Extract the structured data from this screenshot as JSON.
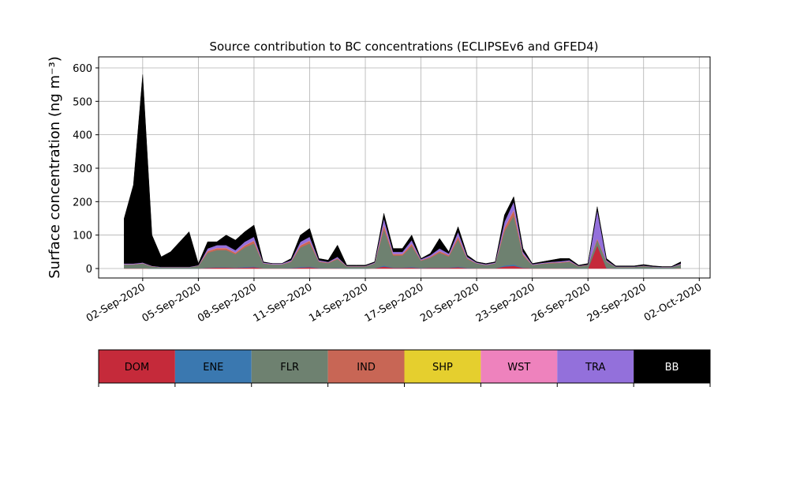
{
  "chart_data": {
    "type": "stacked_area",
    "title": "Source contribution to BC concentrations (ECLIPSEv6 and GFED4)",
    "y_label": "Surface concentration (ng m⁻³)",
    "x": [
      "2020-09-01T00:00",
      "2020-09-01T12:00",
      "2020-09-02T00:00",
      "2020-09-02T12:00",
      "2020-09-03T00:00",
      "2020-09-03T12:00",
      "2020-09-04T00:00",
      "2020-09-04T12:00",
      "2020-09-05T00:00",
      "2020-09-05T12:00",
      "2020-09-06T00:00",
      "2020-09-06T12:00",
      "2020-09-07T00:00",
      "2020-09-07T12:00",
      "2020-09-08T00:00",
      "2020-09-08T12:00",
      "2020-09-09T00:00",
      "2020-09-09T12:00",
      "2020-09-10T00:00",
      "2020-09-10T12:00",
      "2020-09-11T00:00",
      "2020-09-11T12:00",
      "2020-09-12T00:00",
      "2020-09-12T12:00",
      "2020-09-13T00:00",
      "2020-09-13T12:00",
      "2020-09-14T00:00",
      "2020-09-14T12:00",
      "2020-09-15T00:00",
      "2020-09-15T12:00",
      "2020-09-16T00:00",
      "2020-09-16T12:00",
      "2020-09-17T00:00",
      "2020-09-17T12:00",
      "2020-09-18T00:00",
      "2020-09-18T12:00",
      "2020-09-19T00:00",
      "2020-09-19T12:00",
      "2020-09-20T00:00",
      "2020-09-20T12:00",
      "2020-09-21T00:00",
      "2020-09-21T12:00",
      "2020-09-22T00:00",
      "2020-09-22T12:00",
      "2020-09-23T00:00",
      "2020-09-23T12:00",
      "2020-09-24T00:00",
      "2020-09-24T12:00",
      "2020-09-25T00:00",
      "2020-09-25T12:00",
      "2020-09-26T00:00",
      "2020-09-26T12:00",
      "2020-09-27T00:00",
      "2020-09-27T12:00",
      "2020-09-28T00:00",
      "2020-09-28T12:00",
      "2020-09-29T00:00",
      "2020-09-29T12:00",
      "2020-09-30T00:00",
      "2020-09-30T12:00",
      "2020-10-01T00:00"
    ],
    "series": [
      {
        "name": "DOM",
        "color": "#c52a3a",
        "values": [
          1,
          1,
          1,
          0,
          0,
          0,
          0,
          0,
          0,
          2,
          3,
          3,
          2,
          3,
          4,
          1,
          1,
          1,
          1,
          3,
          4,
          1,
          1,
          1,
          0,
          0,
          0,
          1,
          6,
          2,
          2,
          3,
          1,
          2,
          2,
          2,
          4,
          1,
          1,
          1,
          1,
          6,
          8,
          2,
          1,
          1,
          1,
          1,
          1,
          0,
          0,
          70,
          1,
          0,
          0,
          0,
          0,
          0,
          0,
          0,
          1
        ]
      },
      {
        "name": "ENE",
        "color": "#3a78b0",
        "values": [
          0,
          0,
          0,
          0,
          0,
          0,
          0,
          0,
          0,
          1,
          1,
          1,
          1,
          2,
          2,
          0,
          0,
          0,
          1,
          2,
          2,
          1,
          0,
          1,
          0,
          0,
          0,
          0,
          3,
          1,
          1,
          2,
          1,
          1,
          1,
          1,
          2,
          1,
          0,
          0,
          0,
          3,
          4,
          1,
          0,
          0,
          0,
          0,
          1,
          0,
          0,
          0,
          1,
          0,
          0,
          0,
          0,
          0,
          0,
          0,
          0
        ]
      },
      {
        "name": "FLR",
        "color": "#6e8170",
        "values": [
          11,
          11,
          14,
          6,
          4,
          4,
          4,
          4,
          8,
          44,
          51,
          51,
          40,
          58,
          69,
          14,
          11,
          11,
          18,
          58,
          69,
          18,
          15,
          26,
          6,
          6,
          6,
          14,
          109,
          36,
          36,
          62,
          21,
          29,
          44,
          33,
          81,
          26,
          14,
          9,
          14,
          102,
          146,
          36,
          9,
          13,
          15,
          16,
          18,
          6,
          10,
          15,
          18,
          5,
          5,
          5,
          7,
          5,
          4,
          4,
          11
        ]
      },
      {
        "name": "IND",
        "color": "#c86655",
        "values": [
          1,
          1,
          1,
          1,
          0,
          0,
          0,
          0,
          1,
          5,
          6,
          6,
          4,
          6,
          8,
          1,
          1,
          1,
          2,
          6,
          8,
          2,
          2,
          3,
          1,
          1,
          1,
          1,
          12,
          4,
          4,
          7,
          2,
          3,
          5,
          4,
          9,
          3,
          1,
          1,
          1,
          11,
          16,
          4,
          1,
          1,
          2,
          2,
          2,
          1,
          1,
          5,
          2,
          0,
          0,
          0,
          1,
          0,
          0,
          0,
          1
        ]
      },
      {
        "name": "SHP",
        "color": "#e5cf2e",
        "values": [
          0,
          0,
          0,
          0,
          0,
          0,
          0,
          0,
          0,
          0,
          0,
          0,
          0,
          0,
          0,
          0,
          0,
          0,
          0,
          0,
          0,
          0,
          0,
          0,
          0,
          0,
          0,
          0,
          0,
          0,
          0,
          0,
          0,
          0,
          0,
          0,
          0,
          0,
          0,
          0,
          0,
          0,
          0,
          0,
          0,
          0,
          0,
          0,
          0,
          0,
          0,
          0,
          0,
          0,
          0,
          0,
          0,
          0,
          0,
          0,
          0
        ]
      },
      {
        "name": "WST",
        "color": "#ee82bd",
        "values": [
          0,
          0,
          0,
          0,
          0,
          0,
          0,
          0,
          0,
          1,
          1,
          1,
          1,
          1,
          1,
          0,
          0,
          0,
          0,
          1,
          1,
          0,
          0,
          0,
          0,
          0,
          0,
          0,
          2,
          1,
          1,
          1,
          0,
          0,
          1,
          0,
          1,
          0,
          0,
          0,
          0,
          1,
          2,
          1,
          0,
          0,
          0,
          0,
          0,
          0,
          0,
          0,
          0,
          0,
          0,
          0,
          0,
          0,
          0,
          0,
          0
        ]
      },
      {
        "name": "TRA",
        "color": "#9370db",
        "values": [
          2,
          2,
          2,
          1,
          1,
          1,
          1,
          1,
          1,
          7,
          8,
          8,
          7,
          10,
          11,
          2,
          2,
          2,
          3,
          10,
          11,
          3,
          2,
          4,
          1,
          1,
          1,
          2,
          18,
          6,
          6,
          10,
          3,
          5,
          7,
          5,
          13,
          4,
          2,
          2,
          2,
          17,
          24,
          6,
          2,
          2,
          2,
          3,
          3,
          1,
          1,
          85,
          3,
          1,
          1,
          1,
          1,
          1,
          1,
          1,
          2
        ]
      },
      {
        "name": "BB",
        "color": "#000000",
        "values": [
          135,
          235,
          562,
          92,
          30,
          45,
          75,
          105,
          5,
          20,
          10,
          30,
          30,
          30,
          35,
          2,
          0,
          0,
          5,
          20,
          25,
          5,
          5,
          35,
          2,
          2,
          2,
          2,
          15,
          10,
          10,
          15,
          2,
          5,
          30,
          5,
          15,
          5,
          2,
          2,
          2,
          20,
          15,
          10,
          2,
          3,
          5,
          8,
          5,
          2,
          3,
          10,
          5,
          2,
          2,
          2,
          3,
          2,
          1,
          1,
          5
        ]
      }
    ],
    "xlim": [
      "2020-08-30T15:00",
      "2020-10-02T14:00"
    ],
    "xticks": [
      {
        "value": "2020-09-02",
        "label": "02-Sep-2020"
      },
      {
        "value": "2020-09-05",
        "label": "05-Sep-2020"
      },
      {
        "value": "2020-09-08",
        "label": "08-Sep-2020"
      },
      {
        "value": "2020-09-11",
        "label": "11-Sep-2020"
      },
      {
        "value": "2020-09-14",
        "label": "14-Sep-2020"
      },
      {
        "value": "2020-09-17",
        "label": "17-Sep-2020"
      },
      {
        "value": "2020-09-20",
        "label": "20-Sep-2020"
      },
      {
        "value": "2020-09-23",
        "label": "23-Sep-2020"
      },
      {
        "value": "2020-09-26",
        "label": "26-Sep-2020"
      },
      {
        "value": "2020-09-29",
        "label": "29-Sep-2020"
      },
      {
        "value": "2020-10-02",
        "label": "02-Oct-2020"
      }
    ],
    "ylim": [
      -28.3,
      633
    ],
    "yticks": [
      0,
      100,
      200,
      300,
      400,
      500,
      600
    ],
    "grid": true
  }
}
